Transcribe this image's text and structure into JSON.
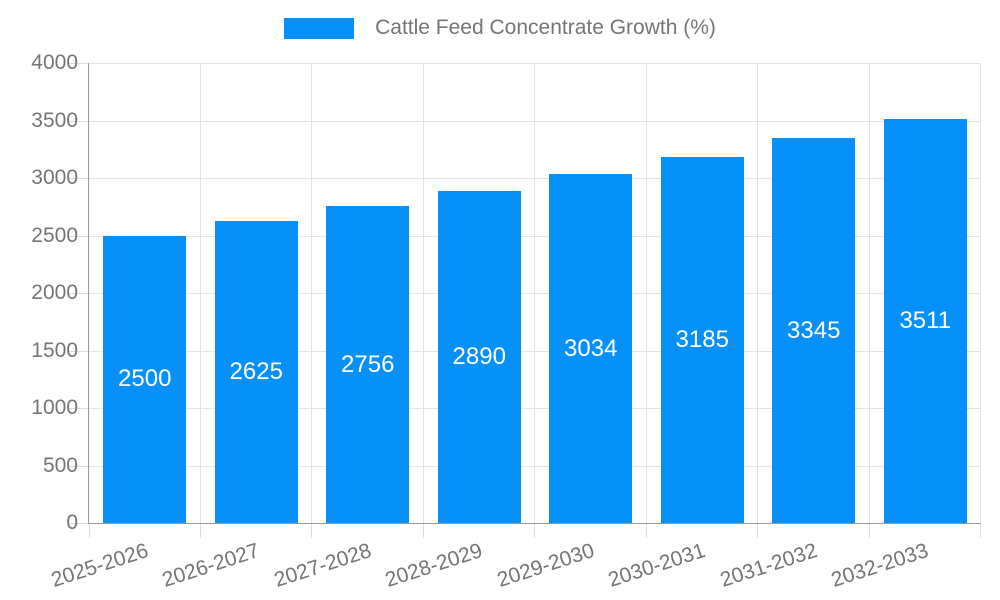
{
  "legend": {
    "label": "Cattle Feed Concentrate Growth (%)"
  },
  "chart_data": {
    "type": "bar",
    "title": "Cattle Feed Concentrate Growth (%)",
    "categories": [
      "2025-2026",
      "2026-2027",
      "2027-2028",
      "2028-2029",
      "2029-2030",
      "2030-2031",
      "2031-2032",
      "2032-2033"
    ],
    "values": [
      2500,
      2625,
      2756,
      2890,
      3034,
      3185,
      3345,
      3511
    ],
    "xlabel": "",
    "ylabel": "",
    "ylim": [
      0,
      4000
    ],
    "ytick_step": 500,
    "ytick_labels": [
      "0",
      "500",
      "1000",
      "1500",
      "2000",
      "2500",
      "3000",
      "3500",
      "4000"
    ],
    "grid": true,
    "legend_position": "top",
    "value_labels": "inside-center",
    "colors": {
      "bar": "#0690F9",
      "value_label": "#FFFFFF",
      "tick_label": "#757575",
      "axis_line": "#9A9A9A",
      "grid_line": "#E3E3E3"
    }
  }
}
